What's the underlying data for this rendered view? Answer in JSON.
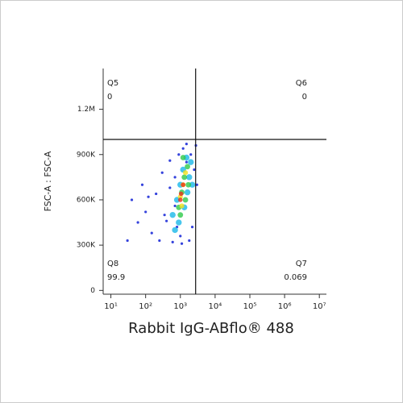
{
  "chart_data": {
    "type": "scatter",
    "xlabel": "Rabbit IgG-ABflo® 488",
    "ylabel": "FSC-A : FSC-A",
    "log_x": true,
    "xlim": [
      6,
      16000000
    ],
    "ylim": [
      -25000,
      1470000
    ],
    "xticks": [
      {
        "value": 10,
        "label": "10¹"
      },
      {
        "value": 100,
        "label": "10²"
      },
      {
        "value": 1000,
        "label": "10³"
      },
      {
        "value": 10000,
        "label": "10⁴"
      },
      {
        "value": 100000,
        "label": "10⁵"
      },
      {
        "value": 1000000,
        "label": "10⁶"
      },
      {
        "value": 10000000,
        "label": "10⁷"
      }
    ],
    "yticks": [
      0,
      {
        "value": 300000,
        "label": "300K"
      },
      {
        "value": 600000,
        "label": "600K"
      },
      {
        "value": 900000,
        "label": "900K"
      },
      {
        "value": 1200000,
        "label": "1.2M"
      }
    ],
    "x_threshold": 2750,
    "y_threshold": 1000000,
    "quadrants": [
      {
        "name": "Q5",
        "value": 0
      },
      {
        "name": "Q6",
        "value": 0
      },
      {
        "name": "Q8",
        "value": 99.9
      },
      {
        "name": "Q7",
        "value": 0.069
      }
    ],
    "series": [
      {
        "color": "#1f2fd8",
        "x": [
          40,
          60,
          80,
          100,
          150,
          200,
          250,
          300,
          400,
          500,
          600,
          700,
          900,
          1200,
          1500,
          2000,
          2500,
          3000,
          2200,
          1800,
          1000,
          800,
          350,
          120,
          30,
          500,
          700,
          1100,
          2800,
          1500
        ],
        "y": [
          600000,
          450000,
          700000,
          520000,
          380000,
          640000,
          330000,
          780000,
          460000,
          860000,
          320000,
          560000,
          900000,
          940000,
          970000,
          900000,
          800000,
          700000,
          420000,
          330000,
          360000,
          420000,
          500000,
          620000,
          330000,
          680000,
          750000,
          310000,
          960000,
          850000
        ]
      },
      {
        "color": "#19b8e8",
        "x": [
          600,
          800,
          1000,
          1200,
          1500,
          900,
          1300,
          1800,
          2000,
          700,
          1600,
          2200
        ],
        "y": [
          500000,
          600000,
          700000,
          800000,
          880000,
          450000,
          550000,
          750000,
          850000,
          400000,
          650000,
          700000
        ]
      },
      {
        "color": "#2ec94a",
        "x": [
          900,
          1100,
          1300,
          1600,
          1000,
          1400,
          1700,
          1200
        ],
        "y": [
          550000,
          650000,
          750000,
          820000,
          500000,
          600000,
          700000,
          880000
        ]
      },
      {
        "color": "#f2e11c",
        "x": [
          1000,
          1200,
          1400,
          1100
        ],
        "y": [
          620000,
          700000,
          780000,
          560000
        ]
      },
      {
        "color": "#e8301c",
        "x": [
          1050,
          1200,
          1000
        ],
        "y": [
          640000,
          700000,
          600000
        ]
      }
    ]
  }
}
